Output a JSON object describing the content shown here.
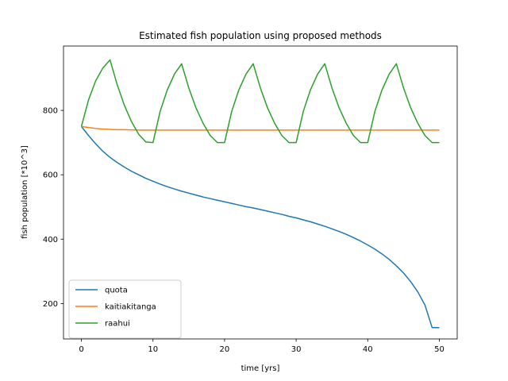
{
  "chart_data": {
    "type": "line",
    "title": "Estimated fish population using proposed methods",
    "xlabel": "time [yrs]",
    "ylabel": "fish population [*10^3]",
    "xlim": [
      -2.5,
      52.5
    ],
    "ylim": [
      90,
      1000
    ],
    "xticks": [
      0,
      10,
      20,
      30,
      40,
      50
    ],
    "yticks": [
      200,
      400,
      600,
      800
    ],
    "grid": false,
    "legend_position": "lower-left",
    "series": [
      {
        "name": "quota",
        "color": "#1f77b4",
        "x": [
          0,
          1,
          2,
          3,
          4,
          5,
          6,
          7,
          8,
          9,
          10,
          11,
          12,
          13,
          14,
          15,
          16,
          17,
          18,
          19,
          20,
          21,
          22,
          23,
          24,
          25,
          26,
          27,
          28,
          29,
          30,
          31,
          32,
          33,
          34,
          35,
          36,
          37,
          38,
          39,
          40,
          41,
          42,
          43,
          44,
          45,
          46,
          47,
          48,
          49,
          50
        ],
        "y": [
          750,
          722,
          696,
          673,
          654,
          638,
          624,
          611,
          600,
          589,
          580,
          571,
          563,
          556,
          549,
          543,
          537,
          531,
          526,
          521,
          516,
          511,
          506,
          501,
          497,
          492,
          487,
          482,
          477,
          471,
          466,
          460,
          454,
          447,
          440,
          432,
          424,
          415,
          405,
          394,
          382,
          369,
          354,
          337,
          317,
          295,
          268,
          236,
          195,
          125,
          125
        ]
      },
      {
        "name": "kaitiakitanga",
        "color": "#ff7f0e",
        "x": [
          0,
          1,
          2,
          3,
          4,
          5,
          6,
          8,
          10,
          15,
          20,
          25,
          30,
          35,
          40,
          45,
          50
        ],
        "y": [
          750,
          747,
          744,
          742,
          741,
          740,
          740,
          739,
          739,
          739,
          739,
          739,
          739,
          739,
          739,
          739,
          739
        ]
      },
      {
        "name": "raahui",
        "color": "#2ca02c",
        "x": [
          0,
          1,
          2,
          3,
          4,
          5,
          6,
          7,
          8,
          9,
          10,
          11,
          12,
          13,
          14,
          15,
          16,
          17,
          18,
          19,
          20,
          21,
          22,
          23,
          24,
          25,
          26,
          27,
          28,
          29,
          30,
          31,
          32,
          33,
          34,
          35,
          36,
          37,
          38,
          39,
          40,
          41,
          42,
          43,
          44,
          45,
          46,
          47,
          48,
          49,
          50
        ],
        "y": [
          750,
          833,
          892,
          932,
          957,
          880,
          816,
          765,
          726,
          702,
          700,
          797,
          864,
          913,
          945,
          870,
          808,
          760,
          722,
          700,
          700,
          797,
          864,
          913,
          945,
          870,
          808,
          760,
          722,
          700,
          700,
          797,
          864,
          913,
          945,
          870,
          808,
          760,
          722,
          700,
          700,
          797,
          864,
          913,
          945,
          870,
          808,
          760,
          722,
          700,
          700
        ]
      }
    ]
  }
}
